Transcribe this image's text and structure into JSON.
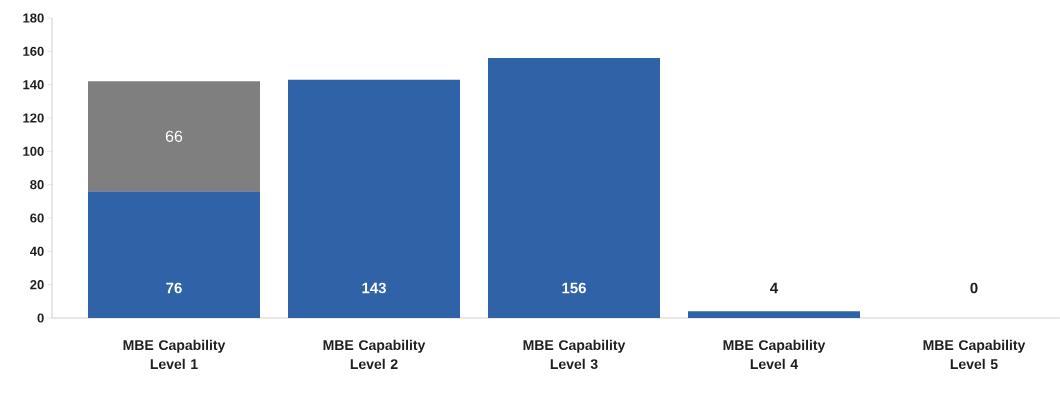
{
  "chart_data": {
    "type": "bar",
    "stacked": true,
    "categories": [
      "MBE Capability Level 1",
      "MBE Capability Level 2",
      "MBE Capability Level 3",
      "MBE Capability Level 4",
      "MBE Capability Level 5"
    ],
    "series": [
      {
        "color": "#2f62a6",
        "values": [
          76,
          143,
          156,
          4,
          0
        ]
      },
      {
        "color": "#7f7f7f",
        "values": [
          66,
          null,
          null,
          null,
          null
        ]
      }
    ],
    "ylim": [
      0,
      180
    ],
    "yticks": [
      0,
      20,
      40,
      60,
      80,
      100,
      120,
      140,
      160,
      180
    ],
    "data_labels": true
  }
}
